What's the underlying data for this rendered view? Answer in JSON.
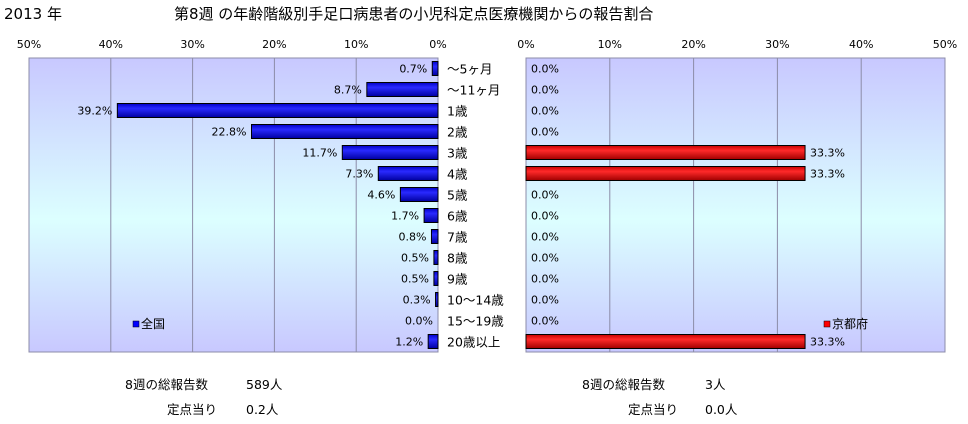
{
  "chart_data": {
    "type": "bar",
    "year_label": "2013 年",
    "title": "第8週 の年齢階級別手足口病患者の小児科定点医療機関からの報告割合",
    "categories": [
      "～5ヶ月",
      "～11ヶ月",
      "1歳",
      "2歳",
      "3歳",
      "4歳",
      "5歳",
      "6歳",
      "7歳",
      "8歳",
      "9歳",
      "10～14歳",
      "15～19歳",
      "20歳以上"
    ],
    "left_axis_ticks": [
      "50%",
      "40%",
      "30%",
      "20%",
      "10%",
      "0%"
    ],
    "right_axis_ticks": [
      "0%",
      "10%",
      "20%",
      "30%",
      "40%",
      "50%"
    ],
    "xlim": [
      0,
      50
    ],
    "grid": true,
    "series": [
      {
        "name": "全国",
        "side": "left",
        "color": "#0000ff",
        "values": [
          0.7,
          8.7,
          39.2,
          22.8,
          11.7,
          7.3,
          4.6,
          1.7,
          0.8,
          0.5,
          0.5,
          0.3,
          0.0,
          1.2
        ],
        "value_labels": [
          "0.7%",
          "8.7%",
          "39.2%",
          "22.8%",
          "11.7%",
          "7.3%",
          "4.6%",
          "1.7%",
          "0.8%",
          "0.5%",
          "0.5%",
          "0.3%",
          "0.0%",
          "1.2%"
        ],
        "legend_position": "bottom-left"
      },
      {
        "name": "京都府",
        "side": "right",
        "color": "#ff0000",
        "values": [
          0.0,
          0.0,
          0.0,
          0.0,
          33.3,
          33.3,
          0.0,
          0.0,
          0.0,
          0.0,
          0.0,
          0.0,
          0.0,
          33.3
        ],
        "value_labels": [
          "0.0%",
          "0.0%",
          "0.0%",
          "0.0%",
          "33.3%",
          "33.3%",
          "0.0%",
          "0.0%",
          "0.0%",
          "0.0%",
          "0.0%",
          "0.0%",
          "0.0%",
          "33.3%"
        ],
        "legend_position": "bottom-right"
      }
    ]
  },
  "summary": {
    "left": {
      "total_label": "8週の総報告数",
      "total_value": "589人",
      "per_site_label": "定点当り",
      "per_site_value": "0.2人"
    },
    "right": {
      "total_label": "8週の総報告数",
      "total_value": "3人",
      "per_site_label": "定点当り",
      "per_site_value": "0.0人"
    }
  },
  "colors": {
    "plot_gradient_edge": "#c8c8ff",
    "plot_gradient_center": "#dcffff",
    "gridline": "#8c8ca8"
  }
}
